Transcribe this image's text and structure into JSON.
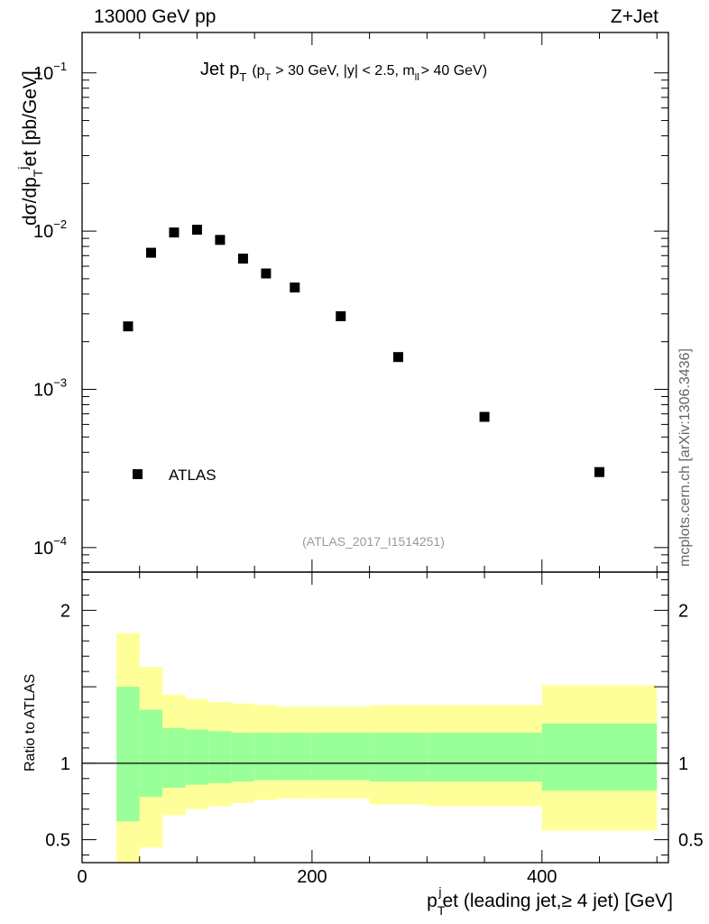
{
  "header": {
    "left": "13000 GeV pp",
    "right": "Z+Jet"
  },
  "plot_title": {
    "main_prefix": "Jet p",
    "main_sub": "T",
    "open": "(p",
    "open_sub": "T",
    "mid": "> 30 GeV, |y| < 2.5, m",
    "mid_sub": "ll",
    "close": "> 40 GeV)"
  },
  "analysis_id": "(ATLAS_2017_I1514251)",
  "side_label": "mcplots.cern.ch [arXiv:1306.3436]",
  "legend": {
    "label": "ATLAS"
  },
  "axes": {
    "ylabel_top": {
      "a": "dσ/dp",
      "sub": "T",
      "sup": "j",
      "b": "et [pb/GeV]"
    },
    "ylabel_bottom": "Ratio to ATLAS",
    "xlabel": {
      "a": "p",
      "sub": "T",
      "sup": "j",
      "b": "et (leading jet,≥ 4 jet) [GeV]"
    }
  },
  "top_ticks": [
    {
      "base": "10",
      "exp": "−1",
      "value": 0.1
    },
    {
      "base": "10",
      "exp": "−2",
      "value": 0.01
    },
    {
      "base": "10",
      "exp": "−3",
      "value": 0.001
    },
    {
      "base": "10",
      "exp": "−4",
      "value": 0.0001
    }
  ],
  "bottom_ticks": [
    {
      "label": "2",
      "value": 2
    },
    {
      "label": "1",
      "value": 1
    },
    {
      "label": "0.5",
      "value": 0.5
    }
  ],
  "x_ticks": [
    {
      "label": "0",
      "value": 0
    },
    {
      "label": "200",
      "value": 200
    },
    {
      "label": "400",
      "value": 400
    }
  ],
  "colors": {
    "band_outer": "#ffff99",
    "band_inner": "#99ff99",
    "marker": "#000000"
  },
  "chart_data": [
    {
      "type": "scatter",
      "name": "main",
      "title": "Jet pT (pT > 30 GeV, |y| < 2.5, mll > 40 GeV)",
      "xlabel": "pTjet (leading jet,≥ 4 jet) [GeV]",
      "ylabel": "dσ/dpTjet [pb/GeV]",
      "yscale": "log",
      "xlim": [
        0,
        510
      ],
      "ylim": [
        7e-05,
        0.18
      ],
      "series": [
        {
          "name": "ATLAS",
          "x": [
            40,
            60,
            80,
            100,
            120,
            140,
            160,
            185,
            225,
            275,
            350,
            450
          ],
          "values": [
            0.0025,
            0.0073,
            0.0098,
            0.0102,
            0.0088,
            0.0067,
            0.0054,
            0.0044,
            0.0029,
            0.0016,
            0.00067,
            0.0003
          ]
        }
      ]
    },
    {
      "type": "area",
      "name": "ratio",
      "xlabel": "pTjet (leading jet,≥ 4 jet) [GeV]",
      "ylabel": "Ratio to ATLAS",
      "xlim": [
        0,
        510
      ],
      "ylim": [
        0.35,
        2.25
      ],
      "reference": 1,
      "bins": [
        {
          "lo": 30,
          "hi": 50,
          "inner": [
            0.62,
            1.5
          ],
          "outer": [
            0.35,
            1.85
          ]
        },
        {
          "lo": 50,
          "hi": 70,
          "inner": [
            0.78,
            1.35
          ],
          "outer": [
            0.45,
            1.63
          ]
        },
        {
          "lo": 70,
          "hi": 90,
          "inner": [
            0.84,
            1.23
          ],
          "outer": [
            0.66,
            1.45
          ]
        },
        {
          "lo": 90,
          "hi": 110,
          "inner": [
            0.86,
            1.22
          ],
          "outer": [
            0.7,
            1.42
          ]
        },
        {
          "lo": 110,
          "hi": 130,
          "inner": [
            0.87,
            1.21
          ],
          "outer": [
            0.72,
            1.4
          ]
        },
        {
          "lo": 130,
          "hi": 150,
          "inner": [
            0.88,
            1.2
          ],
          "outer": [
            0.74,
            1.39
          ]
        },
        {
          "lo": 150,
          "hi": 170,
          "inner": [
            0.89,
            1.2
          ],
          "outer": [
            0.76,
            1.38
          ]
        },
        {
          "lo": 170,
          "hi": 200,
          "inner": [
            0.89,
            1.2
          ],
          "outer": [
            0.77,
            1.37
          ]
        },
        {
          "lo": 200,
          "hi": 250,
          "inner": [
            0.89,
            1.2
          ],
          "outer": [
            0.77,
            1.37
          ]
        },
        {
          "lo": 250,
          "hi": 300,
          "inner": [
            0.88,
            1.2
          ],
          "outer": [
            0.73,
            1.38
          ]
        },
        {
          "lo": 300,
          "hi": 400,
          "inner": [
            0.88,
            1.2
          ],
          "outer": [
            0.72,
            1.38
          ]
        },
        {
          "lo": 400,
          "hi": 500,
          "inner": [
            0.82,
            1.26
          ],
          "outer": [
            0.56,
            1.51
          ]
        }
      ]
    }
  ]
}
